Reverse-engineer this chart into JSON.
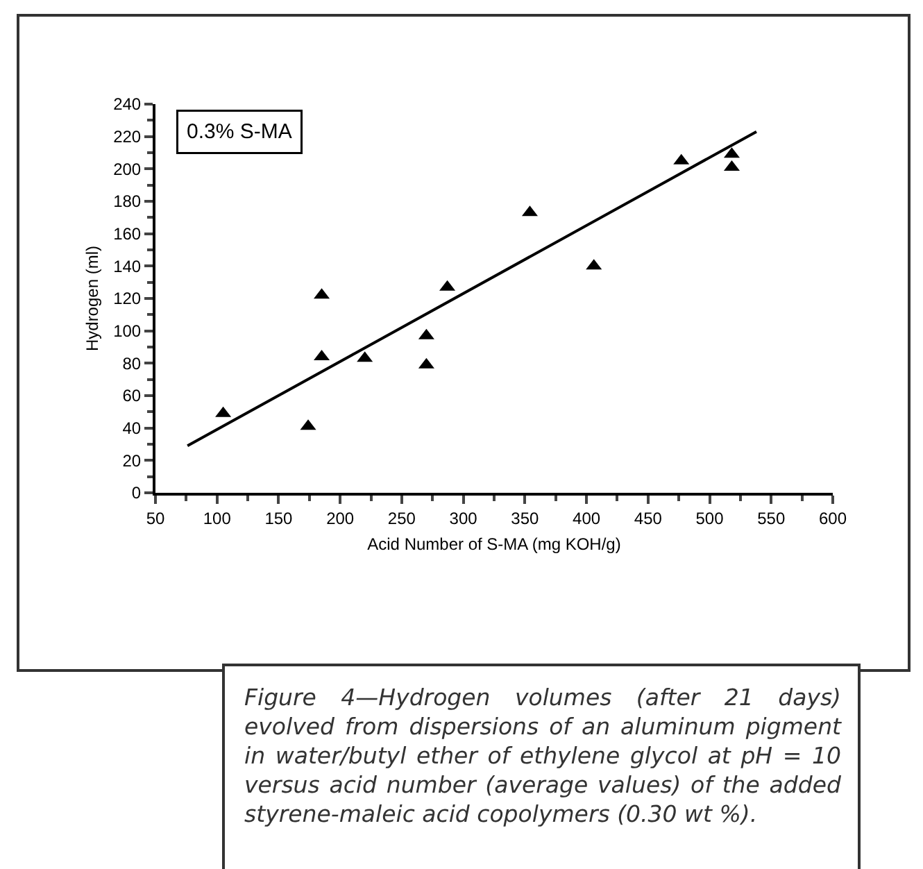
{
  "chart_data": {
    "type": "scatter",
    "xlabel": "Acid Number of S-MA (mg KOH/g)",
    "ylabel": "Hydrogen (ml)",
    "xlim": [
      50,
      600
    ],
    "xticks": [
      50,
      100,
      150,
      200,
      250,
      300,
      350,
      400,
      450,
      500,
      550,
      600
    ],
    "ylim": [
      0,
      240
    ],
    "yticks": [
      0,
      20,
      40,
      60,
      80,
      100,
      120,
      140,
      160,
      180,
      200,
      220,
      240
    ],
    "grid": false,
    "marker": "triangle",
    "series": [
      {
        "color": "#000000",
        "x": [
          105,
          174,
          185,
          185,
          220,
          270,
          270,
          287,
          354,
          406,
          477,
          518,
          518
        ],
        "values": [
          49,
          41,
          122,
          84,
          83,
          97,
          79,
          127,
          173,
          140,
          205,
          209,
          201
        ]
      },
      {
        "type": "line",
        "color": "#000000",
        "line_style": "solid",
        "marker": "none",
        "x": [
          76,
          538
        ],
        "values": [
          29,
          223
        ]
      }
    ],
    "annotations": [
      "0.3% S-MA",
      "Figure 4—Hydrogen volumes (after 21 days) evolved from dispersions of an aluminum pigment in water/butyl ether of ethylene glycol at pH = 10 versus acid number (average values) of the added styrene-maleic acid copolymers (0.30 wt %)."
    ]
  }
}
